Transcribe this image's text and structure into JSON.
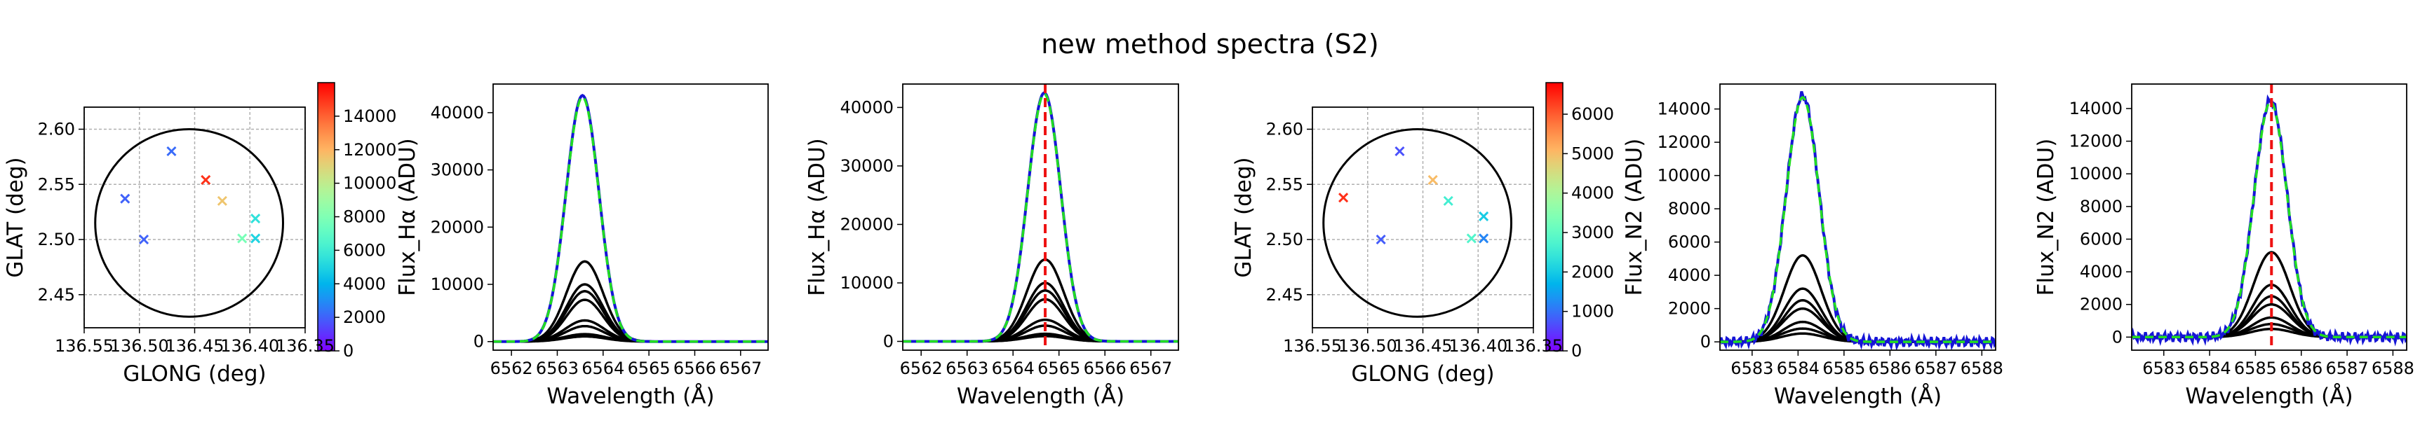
{
  "suptitle": "new method spectra (S2)",
  "colors": {
    "circle": "#000000",
    "dashed_fit": "#22dd22",
    "observed": "#1515d6",
    "model": "#000000",
    "center_line": "#ee1111"
  },
  "chart_data": [
    {
      "type": "scatter",
      "name": "position-map-ha",
      "xlabel": "GLONG (deg)",
      "ylabel": "GLAT (deg)",
      "xlim": [
        136.55,
        136.35
      ],
      "ylim": [
        2.42,
        2.62
      ],
      "xticks": [
        "136.55",
        "136.50",
        "136.45",
        "136.40",
        "136.35"
      ],
      "yticks": [
        "2.45",
        "2.50",
        "2.55",
        "2.60"
      ],
      "circle": {
        "cx": 136.455,
        "cy": 2.515,
        "r": 0.085
      },
      "points": [
        {
          "x": 136.471,
          "y": 2.58,
          "v": 2200
        },
        {
          "x": 136.44,
          "y": 2.554,
          "v": 15000
        },
        {
          "x": 136.425,
          "y": 2.535,
          "v": 11500
        },
        {
          "x": 136.513,
          "y": 2.537,
          "v": 2000
        },
        {
          "x": 136.395,
          "y": 2.519,
          "v": 5500
        },
        {
          "x": 136.407,
          "y": 2.501,
          "v": 7800
        },
        {
          "x": 136.395,
          "y": 2.501,
          "v": 5000
        },
        {
          "x": 136.496,
          "y": 2.5,
          "v": 2000
        }
      ],
      "colorbar": {
        "min": 0,
        "max": 16000,
        "ticks": [
          "0",
          "2000",
          "4000",
          "6000",
          "8000",
          "10000",
          "12000",
          "14000"
        ]
      }
    },
    {
      "type": "line",
      "name": "flux-ha-observed",
      "xlabel": "Wavelength (Å)",
      "ylabel": "Flux_Hα (ADU)",
      "xlim": [
        6561.6,
        6567.6
      ],
      "ylim": [
        -1500,
        45000
      ],
      "xticks": [
        "6562",
        "6563",
        "6564",
        "6565",
        "6566",
        "6567"
      ],
      "yticks": [
        "0",
        "10000",
        "20000",
        "30000",
        "40000"
      ],
      "center_line": null,
      "observed": {
        "amp": 43000,
        "mu": 6563.55,
        "sigma": 0.36
      },
      "fit": {
        "amp": 42700,
        "mu": 6563.55,
        "sigma": 0.36
      },
      "components": [
        {
          "amp": 14000,
          "mu": 6563.6,
          "sigma": 0.4
        },
        {
          "amp": 10000,
          "mu": 6563.6,
          "sigma": 0.4
        },
        {
          "amp": 8800,
          "mu": 6563.6,
          "sigma": 0.4
        },
        {
          "amp": 7300,
          "mu": 6563.6,
          "sigma": 0.4
        },
        {
          "amp": 3700,
          "mu": 6563.6,
          "sigma": 0.42
        },
        {
          "amp": 2700,
          "mu": 6563.6,
          "sigma": 0.42
        },
        {
          "amp": 1300,
          "mu": 6563.6,
          "sigma": 0.45
        },
        {
          "amp": 900,
          "mu": 6563.6,
          "sigma": 0.45
        }
      ]
    },
    {
      "type": "line",
      "name": "flux-ha-shifted",
      "xlabel": "Wavelength (Å)",
      "ylabel": "Flux_Hα (ADU)",
      "xlim": [
        6561.6,
        6567.6
      ],
      "ylim": [
        -1500,
        44000
      ],
      "xticks": [
        "6562",
        "6563",
        "6564",
        "6565",
        "6566",
        "6567"
      ],
      "yticks": [
        "0",
        "10000",
        "20000",
        "30000",
        "40000"
      ],
      "center_line": 6564.7,
      "observed": {
        "amp": 42500,
        "mu": 6564.68,
        "sigma": 0.36
      },
      "fit": {
        "amp": 42300,
        "mu": 6564.68,
        "sigma": 0.36
      },
      "components": [
        {
          "amp": 14000,
          "mu": 6564.7,
          "sigma": 0.4
        },
        {
          "amp": 10000,
          "mu": 6564.7,
          "sigma": 0.4
        },
        {
          "amp": 8700,
          "mu": 6564.7,
          "sigma": 0.4
        },
        {
          "amp": 7200,
          "mu": 6564.7,
          "sigma": 0.4
        },
        {
          "amp": 3700,
          "mu": 6564.7,
          "sigma": 0.42
        },
        {
          "amp": 2700,
          "mu": 6564.7,
          "sigma": 0.42
        },
        {
          "amp": 1300,
          "mu": 6564.7,
          "sigma": 0.45
        },
        {
          "amp": 900,
          "mu": 6564.7,
          "sigma": 0.45
        }
      ]
    },
    {
      "type": "scatter",
      "name": "position-map-n2",
      "xlabel": "GLONG (deg)",
      "ylabel": "GLAT (deg)",
      "xlim": [
        136.55,
        136.35
      ],
      "ylim": [
        2.42,
        2.62
      ],
      "xticks": [
        "136.55",
        "136.50",
        "136.45",
        "136.40",
        "136.35"
      ],
      "yticks": [
        "2.45",
        "2.50",
        "2.55",
        "2.60"
      ],
      "circle": {
        "cx": 136.455,
        "cy": 2.515,
        "r": 0.085
      },
      "points": [
        {
          "x": 136.471,
          "y": 2.58,
          "v": 700
        },
        {
          "x": 136.441,
          "y": 2.554,
          "v": 5000
        },
        {
          "x": 136.427,
          "y": 2.535,
          "v": 2600
        },
        {
          "x": 136.522,
          "y": 2.538,
          "v": 6400
        },
        {
          "x": 136.395,
          "y": 2.521,
          "v": 2000
        },
        {
          "x": 136.406,
          "y": 2.501,
          "v": 2800
        },
        {
          "x": 136.395,
          "y": 2.501,
          "v": 1200
        },
        {
          "x": 136.488,
          "y": 2.5,
          "v": 800
        }
      ],
      "colorbar": {
        "min": 0,
        "max": 6800,
        "ticks": [
          "0",
          "1000",
          "2000",
          "3000",
          "4000",
          "5000",
          "6000"
        ]
      }
    },
    {
      "type": "line",
      "name": "flux-n2-observed",
      "xlabel": "Wavelength (Å)",
      "ylabel": "Flux_N2 (ADU)",
      "xlim": [
        6582.3,
        6588.3
      ],
      "ylim": [
        -500,
        15500
      ],
      "xticks": [
        "6583",
        "6584",
        "6585",
        "6586",
        "6587",
        "6588"
      ],
      "yticks": [
        "0",
        "2000",
        "4000",
        "6000",
        "8000",
        "10000",
        "12000",
        "14000"
      ],
      "center_line": null,
      "observed": {
        "amp": 14800,
        "mu": 6584.1,
        "sigma": 0.36,
        "noise": 300
      },
      "fit": {
        "amp": 14700,
        "mu": 6584.1,
        "sigma": 0.36
      },
      "components": [
        {
          "amp": 5200,
          "mu": 6584.1,
          "sigma": 0.4
        },
        {
          "amp": 3200,
          "mu": 6584.1,
          "sigma": 0.4
        },
        {
          "amp": 2500,
          "mu": 6584.1,
          "sigma": 0.4
        },
        {
          "amp": 2000,
          "mu": 6584.1,
          "sigma": 0.42
        },
        {
          "amp": 1200,
          "mu": 6584.1,
          "sigma": 0.42
        },
        {
          "amp": 800,
          "mu": 6584.1,
          "sigma": 0.45
        },
        {
          "amp": 500,
          "mu": 6584.1,
          "sigma": 0.45
        }
      ]
    },
    {
      "type": "line",
      "name": "flux-n2-shifted",
      "xlabel": "Wavelength (Å)",
      "ylabel": "Flux_N2 (ADU)",
      "xlim": [
        6582.3,
        6588.3
      ],
      "ylim": [
        -800,
        15500
      ],
      "xticks": [
        "6583",
        "6584",
        "6585",
        "6586",
        "6587",
        "6588"
      ],
      "yticks": [
        "0",
        "2000",
        "4000",
        "6000",
        "8000",
        "10000",
        "12000",
        "14000"
      ],
      "center_line": 6585.35,
      "observed": {
        "amp": 14500,
        "mu": 6585.33,
        "sigma": 0.36,
        "noise": 300
      },
      "fit": {
        "amp": 14400,
        "mu": 6585.33,
        "sigma": 0.36
      },
      "components": [
        {
          "amp": 5200,
          "mu": 6585.35,
          "sigma": 0.4
        },
        {
          "amp": 3200,
          "mu": 6585.35,
          "sigma": 0.4
        },
        {
          "amp": 2500,
          "mu": 6585.35,
          "sigma": 0.4
        },
        {
          "amp": 2000,
          "mu": 6585.35,
          "sigma": 0.42
        },
        {
          "amp": 1200,
          "mu": 6585.35,
          "sigma": 0.42
        },
        {
          "amp": 800,
          "mu": 6585.35,
          "sigma": 0.45
        },
        {
          "amp": 500,
          "mu": 6585.35,
          "sigma": 0.45
        }
      ]
    }
  ]
}
